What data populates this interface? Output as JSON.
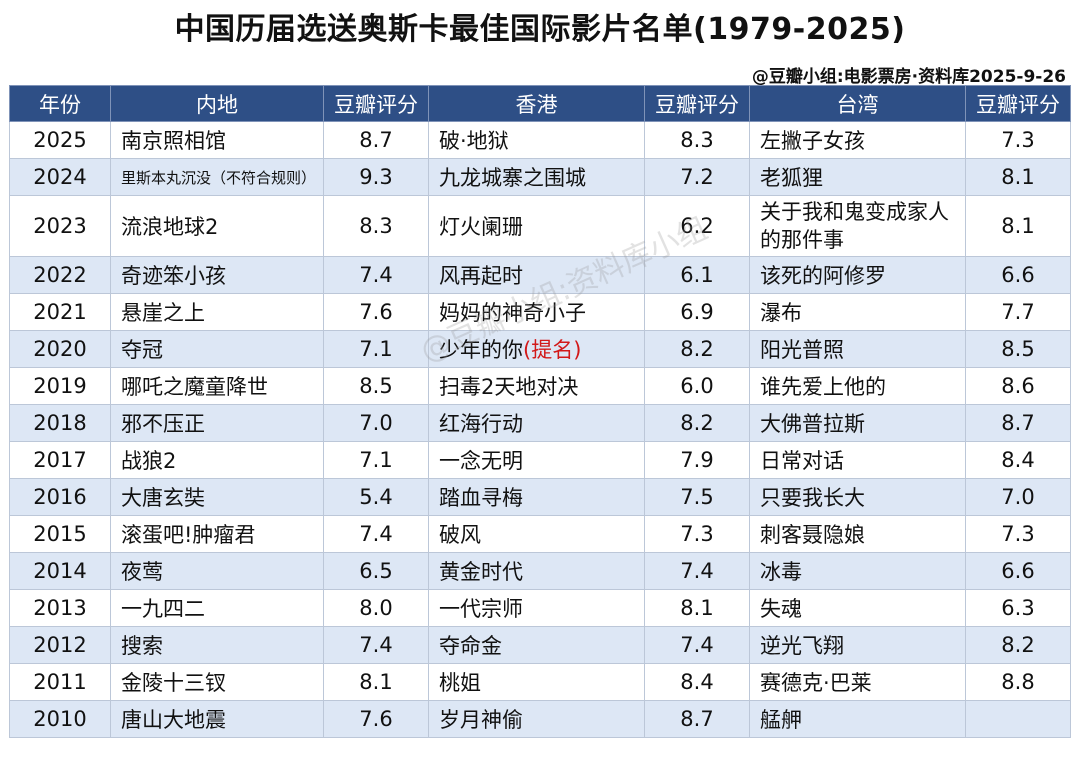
{
  "title": "中国历届选送奥斯卡最佳国际影片名单(1979-2025)",
  "source": "@豆瓣小组:电影票房·资料库2025-9-26",
  "watermark": "@豆瓣小组:资料库小组",
  "headers": [
    "年份",
    "内地",
    "豆瓣评分",
    "香港",
    "豆瓣评分",
    "台湾",
    "豆瓣评分"
  ],
  "rows": [
    {
      "year": "2025",
      "mainland": "南京照相馆",
      "mainland_score": "8.7",
      "hk": "破·地狱",
      "hk_score": "8.3",
      "tw": "左撇子女孩",
      "tw_score": "7.3"
    },
    {
      "year": "2024",
      "mainland": "里斯本丸沉没（不符合规则）",
      "mainland_score": "9.3",
      "hk": "九龙城寨之围城",
      "hk_score": "7.2",
      "tw": "老狐狸",
      "tw_score": "8.1"
    },
    {
      "year": "2023",
      "mainland": "流浪地球2",
      "mainland_score": "8.3",
      "hk": "灯火阑珊",
      "hk_score": "6.2",
      "tw": "关于我和鬼变成家人的那件事",
      "tw_score": "8.1"
    },
    {
      "year": "2022",
      "mainland": "奇迹笨小孩",
      "mainland_score": "7.4",
      "hk": "风再起时",
      "hk_score": "6.1",
      "tw": "该死的阿修罗",
      "tw_score": "6.6"
    },
    {
      "year": "2021",
      "mainland": "悬崖之上",
      "mainland_score": "7.6",
      "hk": "妈妈的神奇小子",
      "hk_score": "6.9",
      "tw": "瀑布",
      "tw_score": "7.7"
    },
    {
      "year": "2020",
      "mainland": "夺冠",
      "mainland_score": "7.1",
      "hk": "少年的你",
      "hk_note": "(提名)",
      "hk_score": "8.2",
      "tw": "阳光普照",
      "tw_score": "8.5"
    },
    {
      "year": "2019",
      "mainland": "哪吒之魔童降世",
      "mainland_score": "8.5",
      "hk": "扫毒2天地对决",
      "hk_score": "6.0",
      "tw": "谁先爱上他的",
      "tw_score": "8.6"
    },
    {
      "year": "2018",
      "mainland": "邪不压正",
      "mainland_score": "7.0",
      "hk": "红海行动",
      "hk_score": "8.2",
      "tw": "大佛普拉斯",
      "tw_score": "8.7"
    },
    {
      "year": "2017",
      "mainland": "战狼2",
      "mainland_score": "7.1",
      "hk": "一念无明",
      "hk_score": "7.9",
      "tw": "日常对话",
      "tw_score": "8.4"
    },
    {
      "year": "2016",
      "mainland": "大唐玄奘",
      "mainland_score": "5.4",
      "hk": "踏血寻梅",
      "hk_score": "7.5",
      "tw": "只要我长大",
      "tw_score": "7.0"
    },
    {
      "year": "2015",
      "mainland": "滚蛋吧!肿瘤君",
      "mainland_score": "7.4",
      "hk": "破风",
      "hk_score": "7.3",
      "tw": "刺客聂隐娘",
      "tw_score": "7.3"
    },
    {
      "year": "2014",
      "mainland": "夜莺",
      "mainland_score": "6.5",
      "hk": "黄金时代",
      "hk_score": "7.4",
      "tw": "冰毒",
      "tw_score": "6.6"
    },
    {
      "year": "2013",
      "mainland": "一九四二",
      "mainland_score": "8.0",
      "hk": "一代宗师",
      "hk_score": "8.1",
      "tw": "失魂",
      "tw_score": "6.3"
    },
    {
      "year": "2012",
      "mainland": "搜索",
      "mainland_score": "7.4",
      "hk": "夺命金",
      "hk_score": "7.4",
      "tw": "逆光飞翔",
      "tw_score": "8.2"
    },
    {
      "year": "2011",
      "mainland": "金陵十三钗",
      "mainland_score": "8.1",
      "hk": "桃姐",
      "hk_score": "8.4",
      "tw": "赛德克·巴莱",
      "tw_score": "8.8"
    },
    {
      "year": "2010",
      "mainland": "唐山大地震",
      "mainland_score": "7.6",
      "hk": "岁月神偷",
      "hk_score": "8.7",
      "tw": "艋舺",
      "tw_score": ""
    }
  ],
  "colors": {
    "header_bg": "#2e4f86",
    "stripe": "#dde7f5",
    "nominated": "#d21919"
  }
}
